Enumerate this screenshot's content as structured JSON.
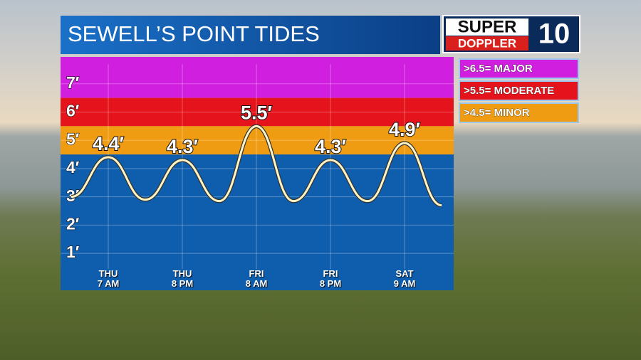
{
  "chart_data": {
    "type": "line",
    "title": "SEWELL’S POINT TIDES",
    "logo": {
      "top": "SUPER",
      "bottom": "DOPPLER",
      "number": "10"
    },
    "categories": [
      null,
      "THU\n7 AM",
      null,
      "THU\n8 PM",
      null,
      "FRI\n8 AM",
      null,
      "FRI\n8 PM",
      null,
      "SAT\n9 AM",
      null
    ],
    "series": [
      {
        "color": "#fff4c4",
        "values": [
          3.0,
          4.4,
          2.9,
          4.3,
          2.85,
          5.5,
          2.85,
          4.3,
          2.85,
          4.9,
          2.7
        ],
        "value_labels": [
          null,
          "4.4′",
          null,
          "4.3′",
          null,
          "5.5′",
          null,
          "4.3′",
          null,
          "4.9′",
          null
        ]
      }
    ],
    "thresholds": [
      {
        "label": ">6.5= MAJOR",
        "value": 6.5,
        "color": "#d01fdf"
      },
      {
        "label": ">5.5= MODERATE",
        "value": 5.5,
        "color": "#e5141c"
      },
      {
        "label": ">4.5= MINOR",
        "value": 4.5,
        "color": "#ef9c12"
      }
    ],
    "base_color": "#0f5eae",
    "ylim": [
      0.45,
      7.95
    ],
    "yticks": [
      {
        "value": 1,
        "label": "1′"
      },
      {
        "value": 2,
        "label": "2′"
      },
      {
        "value": 3,
        "label": "3′"
      },
      {
        "value": 4,
        "label": "4′"
      },
      {
        "value": 5,
        "label": "5′"
      },
      {
        "value": 6,
        "label": "6′"
      },
      {
        "value": 7,
        "label": "7′"
      }
    ],
    "grid": true
  }
}
